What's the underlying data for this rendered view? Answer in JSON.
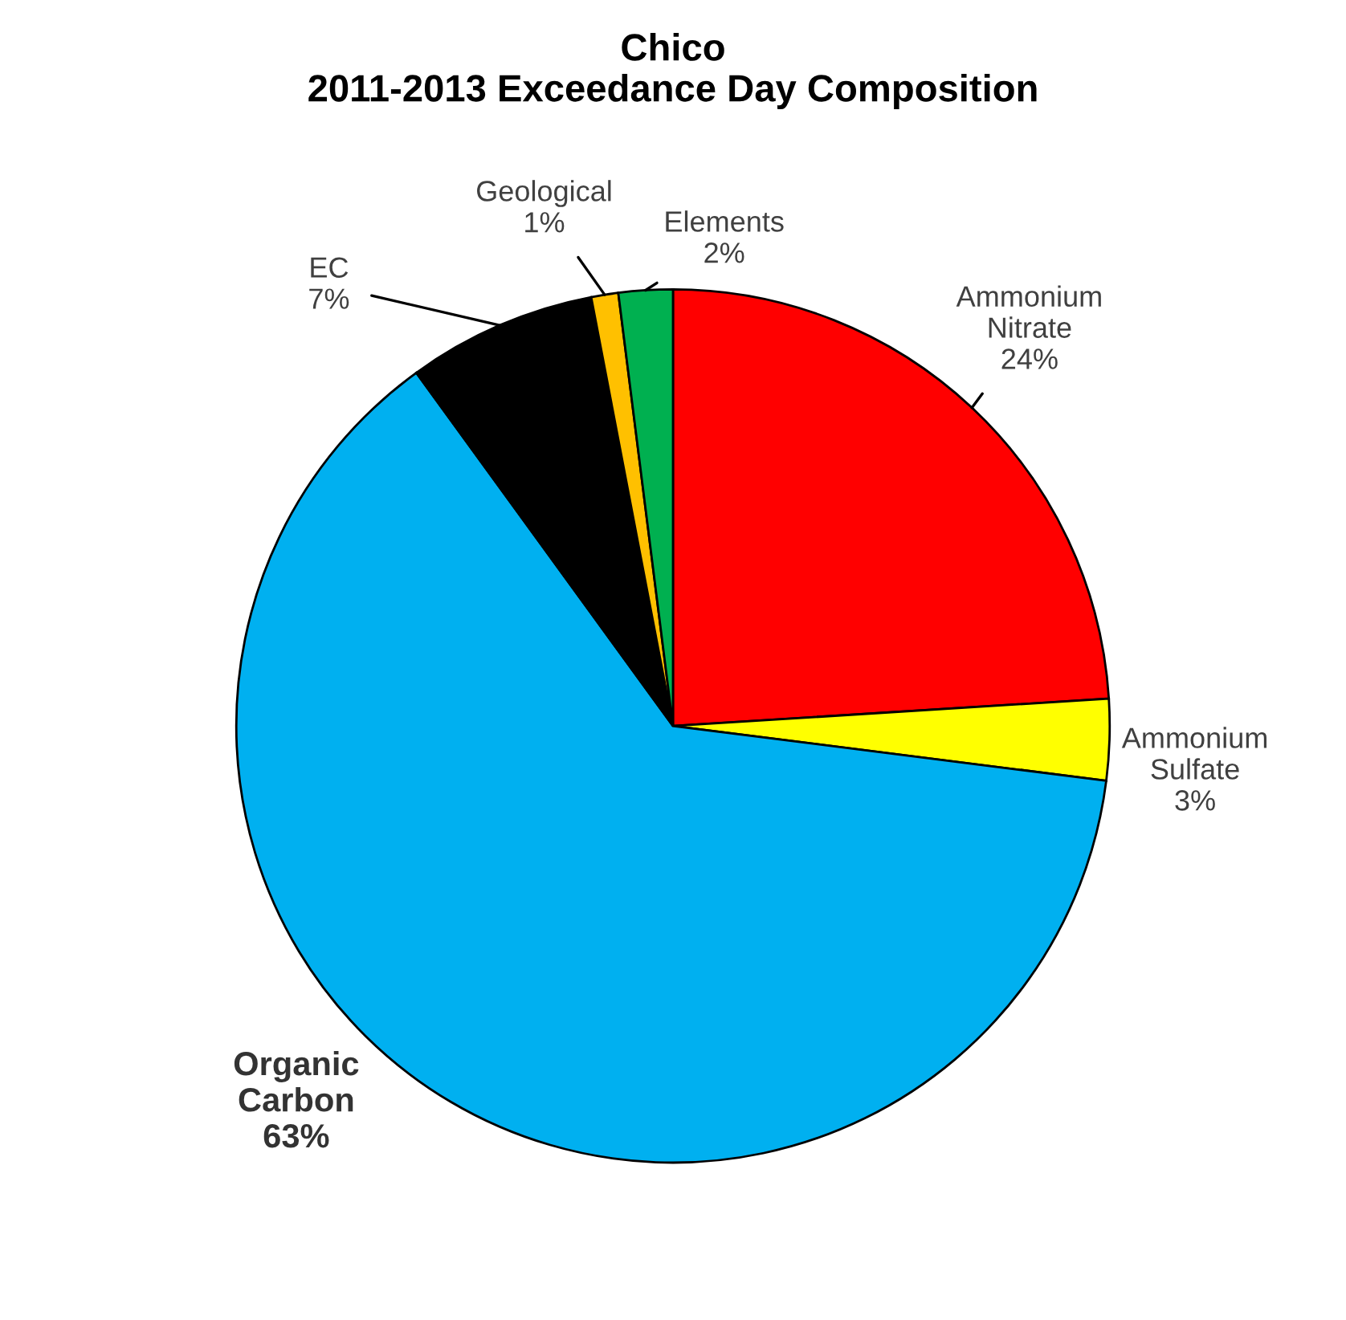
{
  "chart_data": {
    "type": "pie",
    "title": "Chico\n2011-2013 Exceedance Day Composition",
    "categories": [
      "Ammonium\nNitrate",
      "Ammonium\nSulfate",
      "Organic\nCarbon",
      "EC",
      "Geological",
      "Elements"
    ],
    "values": [
      24,
      3,
      63,
      7,
      1,
      2
    ],
    "value_labels": [
      "24%",
      "3%",
      "63%",
      "7%",
      "1%",
      "2%"
    ],
    "colors": [
      "#ff0000",
      "#ffff00",
      "#00b0f0",
      "#000000",
      "#ffc000",
      "#00b050"
    ],
    "legend": false
  }
}
